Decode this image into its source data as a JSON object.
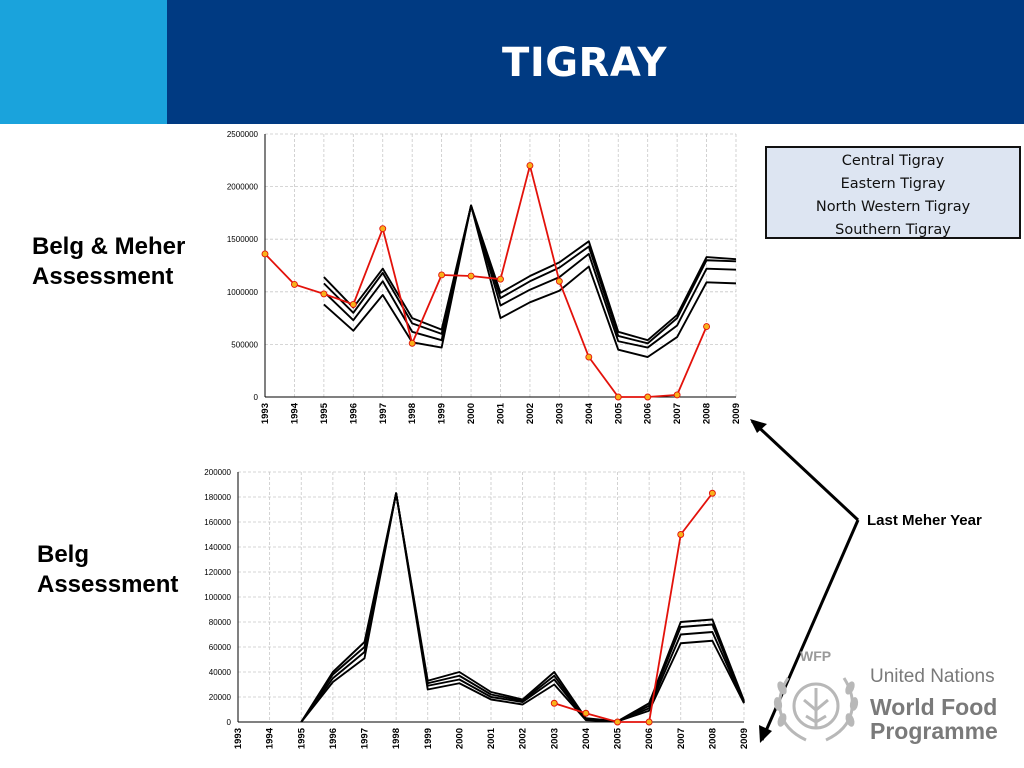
{
  "header": {
    "title": "TIGRAY"
  },
  "labels": {
    "top_line1": "Belg & Meher",
    "top_line2": "Assessment",
    "bottom_line1": "Belg",
    "bottom_line2": "Assessment",
    "annotation": "Last Meher Year"
  },
  "legend": {
    "items": [
      "Central Tigray",
      "Eastern Tigray",
      "North Western Tigray",
      "Southern Tigray"
    ]
  },
  "logo": {
    "abbr": "WFP",
    "line1": "United Nations",
    "line2": "World Food",
    "line3": "Programme"
  },
  "colors": {
    "header_dark": "#003a82",
    "header_accent": "#1aa3dc",
    "red_series": "#e3120b",
    "marker_fill": "#f7b21a",
    "black_series": "#000000"
  },
  "chart_data": [
    {
      "type": "line",
      "title": "",
      "x": [
        "1993",
        "1994",
        "1995",
        "1996",
        "1997",
        "1998",
        "1999",
        "2000",
        "2001",
        "2002",
        "2003",
        "2004",
        "2005",
        "2006",
        "2007",
        "2008",
        "2009"
      ],
      "ylim": [
        0,
        2500000
      ],
      "yticks": [
        0,
        500000,
        1000000,
        1500000,
        2000000,
        2500000
      ],
      "grid": true,
      "series": [
        {
          "color": "#000000",
          "markers": false,
          "values": [
            null,
            null,
            1140000,
            850000,
            1220000,
            750000,
            640000,
            1820000,
            990000,
            1150000,
            1280000,
            1480000,
            620000,
            540000,
            780000,
            1330000,
            1310000
          ]
        },
        {
          "color": "#000000",
          "markers": false,
          "values": [
            null,
            null,
            1080000,
            800000,
            1180000,
            700000,
            600000,
            1820000,
            940000,
            1100000,
            1230000,
            1430000,
            580000,
            510000,
            750000,
            1300000,
            1290000
          ]
        },
        {
          "color": "#000000",
          "markers": false,
          "values": [
            null,
            null,
            1000000,
            730000,
            1100000,
            620000,
            540000,
            1820000,
            870000,
            1020000,
            1140000,
            1360000,
            530000,
            470000,
            680000,
            1220000,
            1210000
          ]
        },
        {
          "color": "#000000",
          "markers": false,
          "values": [
            null,
            null,
            880000,
            630000,
            970000,
            520000,
            470000,
            1820000,
            750000,
            900000,
            1010000,
            1240000,
            450000,
            380000,
            570000,
            1090000,
            1080000
          ]
        },
        {
          "color": "#e3120b",
          "markers": true,
          "values": [
            1360000,
            1070000,
            980000,
            880000,
            1600000,
            510000,
            1160000,
            1150000,
            1120000,
            2200000,
            1100000,
            380000,
            0,
            0,
            20000,
            670000,
            null
          ]
        }
      ]
    },
    {
      "type": "line",
      "title": "",
      "x": [
        "1993",
        "1994",
        "1995",
        "1996",
        "1997",
        "1998",
        "1999",
        "2000",
        "2001",
        "2002",
        "2003",
        "2004",
        "2005",
        "2006",
        "2007",
        "2008",
        "2009"
      ],
      "ylim": [
        0,
        200000
      ],
      "yticks": [
        0,
        20000,
        40000,
        60000,
        80000,
        100000,
        120000,
        140000,
        160000,
        180000,
        200000
      ],
      "grid": true,
      "series": [
        {
          "color": "#000000",
          "markers": false,
          "values": [
            null,
            null,
            0,
            40000,
            64000,
            183000,
            33000,
            40000,
            24000,
            18000,
            40000,
            3000,
            500,
            15000,
            80000,
            82000,
            17000
          ]
        },
        {
          "color": "#000000",
          "markers": false,
          "values": [
            null,
            null,
            0,
            38000,
            60000,
            183000,
            31000,
            37000,
            22000,
            17000,
            37000,
            2500,
            500,
            13000,
            76000,
            78000,
            16000
          ]
        },
        {
          "color": "#000000",
          "markers": false,
          "values": [
            null,
            null,
            0,
            35000,
            56000,
            183000,
            29000,
            34000,
            20000,
            16000,
            34000,
            2000,
            500,
            11000,
            70000,
            72000,
            15500
          ]
        },
        {
          "color": "#000000",
          "markers": false,
          "values": [
            null,
            null,
            0,
            32000,
            51000,
            183000,
            26000,
            31000,
            18000,
            14000,
            30000,
            1500,
            500,
            9000,
            63000,
            65000,
            15000
          ]
        },
        {
          "color": "#e3120b",
          "markers": true,
          "values": [
            null,
            null,
            null,
            null,
            null,
            null,
            null,
            null,
            null,
            null,
            15000,
            7000,
            0,
            0,
            150000,
            183000,
            null
          ]
        }
      ]
    }
  ]
}
